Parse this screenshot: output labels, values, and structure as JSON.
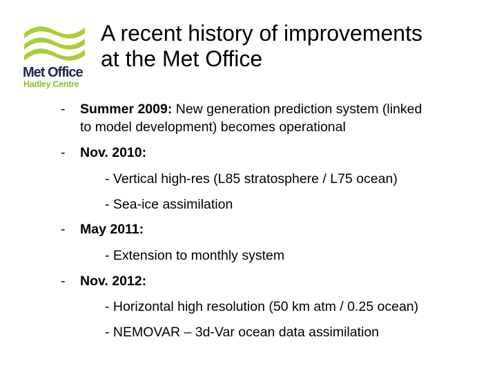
{
  "logo": {
    "name": "Met Office",
    "subtitle": "Hadley Centre",
    "colors": {
      "waves": "#a8cf38",
      "name": "#1f2a44",
      "subtitle": "#8cbd2a"
    }
  },
  "title": {
    "line1": "A recent history of improvements",
    "line2": "at the Met Office"
  },
  "bullets": [
    {
      "marker": "-",
      "date": "Summer 2009:",
      "text_line1": " New generation prediction system (linked",
      "text_line2": "to model development) becomes operational"
    },
    {
      "marker": "-",
      "date": "Nov. 2010:",
      "subitems": [
        "- Vertical high-res (L85 stratosphere / L75 ocean)",
        "- Sea-ice assimilation"
      ]
    },
    {
      "marker": "-",
      "date": "May 2011:",
      "subitems": [
        "- Extension to monthly system"
      ]
    },
    {
      "marker": "-",
      "date": "Nov. 2012:",
      "subitems": [
        "- Horizontal high resolution (50 km atm / 0.25 ocean)",
        "- NEMOVAR – 3d-Var ocean data assimilation"
      ]
    }
  ]
}
